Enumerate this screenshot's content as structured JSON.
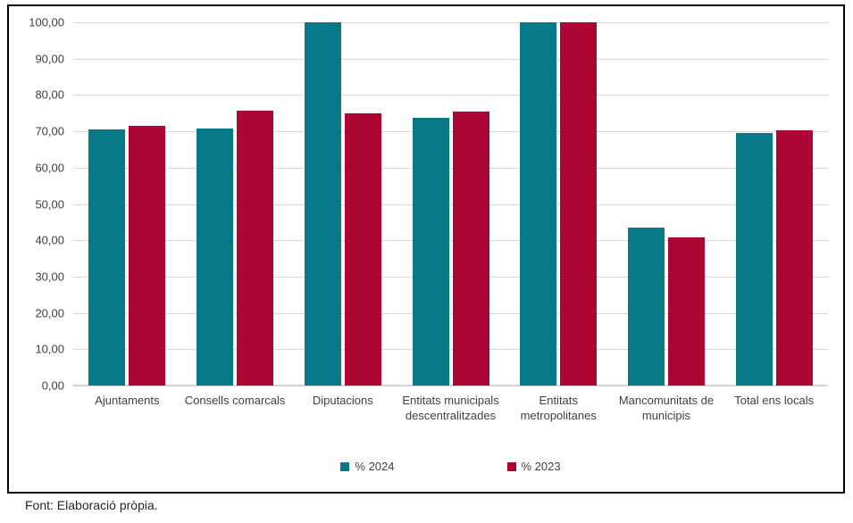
{
  "chart_data": {
    "type": "bar",
    "title": "",
    "xlabel": "",
    "ylabel": "",
    "categories": [
      "Ajuntaments",
      "Consells comarcals",
      "Diputacions",
      "Entitats municipals descentralitzades",
      "Entitats metropolitanes",
      "Mancomunitats de municipis",
      "Total ens locals"
    ],
    "series": [
      {
        "name": "% 2024",
        "color": "#087a87",
        "values": [
          70.5,
          70.8,
          100.0,
          73.7,
          100.0,
          43.5,
          69.5
        ]
      },
      {
        "name": "% 2023",
        "color": "#ac0635",
        "values": [
          71.5,
          75.6,
          75.0,
          75.4,
          100.0,
          40.8,
          70.3
        ]
      }
    ],
    "ylim": [
      0,
      100
    ],
    "ytick_step": 10,
    "ytick_labels": [
      "0,00",
      "10,00",
      "20,00",
      "30,00",
      "40,00",
      "50,00",
      "60,00",
      "70,00",
      "80,00",
      "90,00",
      "100,00"
    ],
    "grid": true,
    "legend_position": "bottom-center"
  },
  "footer": {
    "source": "Font: Elaboració pròpia."
  },
  "colors": {
    "grid": "#d9d9d9",
    "zero_line": "#d3d3d3",
    "axis_text": "#404040",
    "frame_border": "#000000",
    "background": "#ffffff"
  }
}
